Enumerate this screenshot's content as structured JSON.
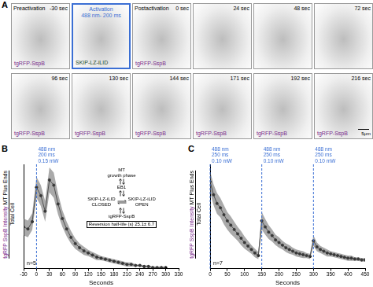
{
  "image_panel": {
    "panel_label": "A",
    "frames": [
      {
        "label": "Preactivation",
        "time": "-30 sec",
        "protein": "tgRFP-SspB"
      },
      {
        "label": "Activation",
        "time": "488 nm- 200 ms",
        "protein": "SKIP-LZ-iLID",
        "color": "#3b6fd4"
      },
      {
        "label": "Postactivation",
        "time": "0 sec",
        "protein": "tgRFP-SspB"
      },
      {
        "time": "24 sec"
      },
      {
        "time": "48 sec"
      },
      {
        "time": "72 sec"
      },
      {
        "time": "96 sec",
        "protein": "tgRFP-SspB"
      },
      {
        "time": "130 sec",
        "protein": "tgRFP-SspB"
      },
      {
        "time": "144 sec",
        "protein": "tgRFP-SspB"
      },
      {
        "time": "171 sec",
        "protein": "tgRFP-SspB"
      },
      {
        "time": "192 sec",
        "protein": "tgRFP-SspB"
      },
      {
        "time": "216 sec",
        "protein": "tgRFP-SspB"
      }
    ],
    "scale_bar": "5μm"
  },
  "chart_data": [
    {
      "type": "line",
      "panel_label": "B",
      "y_label": [
        "tgRFP SspB Intensity",
        "MT Plus Ends",
        "Total Cell"
      ],
      "x_label": "Seconds",
      "x": [
        -30,
        -20,
        -10,
        0,
        10,
        20,
        30,
        40,
        50,
        60,
        70,
        80,
        90,
        100,
        110,
        120,
        130,
        140,
        150,
        160,
        170,
        180,
        190,
        200,
        210,
        220,
        230,
        240,
        250,
        260,
        270,
        280,
        290,
        300
      ],
      "xlim": [
        -30,
        330
      ],
      "xticks": [
        -30,
        0,
        30,
        60,
        90,
        120,
        150,
        180,
        210,
        240,
        270,
        300,
        330
      ],
      "ylim": [
        0,
        1
      ],
      "grid": false,
      "tick_labels": "x",
      "series": [
        {
          "color": "#000000",
          "marker": "circle",
          "line_style": "solid",
          "values": [
            0.4,
            0.38,
            0.45,
            0.78,
            0.7,
            0.55,
            0.85,
            0.8,
            0.62,
            0.48,
            0.38,
            0.3,
            0.24,
            0.2,
            0.17,
            0.15,
            0.13,
            0.11,
            0.1,
            0.09,
            0.08,
            0.07,
            0.06,
            0.05,
            0.04,
            0.04,
            0.03,
            0.03,
            0.02,
            0.02,
            0.01,
            0.01,
            0.01,
            0.01
          ],
          "error": [
            0.08,
            0.08,
            0.08,
            0.1,
            0.1,
            0.1,
            0.12,
            0.12,
            0.1,
            0.08,
            0.07,
            0.06,
            0.05,
            0.04,
            0.04,
            0.03,
            0.03,
            0.03,
            0.02,
            0.02,
            0.02,
            0.02,
            0.02,
            0.02,
            0.02,
            0.02,
            0.01,
            0.01,
            0.01,
            0.01,
            0.01,
            0.01,
            0.01,
            0.01
          ]
        }
      ],
      "annotations": [
        {
          "x": 0,
          "text": [
            "488 nm",
            "200 ms",
            "0.15 mW"
          ],
          "color": "#3b6fd4",
          "line_style": "dashed"
        }
      ],
      "n_label": "n=5",
      "inset": {
        "mt": [
          "MT",
          "growth phase"
        ],
        "eb1": "EB1",
        "closed": [
          "SKIP-LZ-iLID",
          "CLOSED"
        ],
        "open": [
          "SKIP-LZ-iLID",
          "OPEN"
        ],
        "sspb": "tgRFP-SspB",
        "half_life_label": "Reversion half-life (s)",
        "half_life": "25.1± 6.7"
      }
    },
    {
      "type": "line",
      "panel_label": "C",
      "y_label": [
        "tgRFP SspB Intensity",
        "MT Plus Ends",
        "Total Cell"
      ],
      "x_label": "Seconds",
      "x": [
        0,
        10,
        20,
        30,
        40,
        50,
        60,
        70,
        80,
        90,
        100,
        110,
        120,
        130,
        140,
        150,
        160,
        170,
        180,
        190,
        200,
        210,
        220,
        230,
        240,
        250,
        260,
        270,
        280,
        290,
        300,
        310,
        320,
        330,
        340,
        350,
        360,
        370,
        380,
        390,
        400,
        410,
        420,
        430,
        440,
        450
      ],
      "xlim": [
        0,
        450
      ],
      "xticks": [
        0,
        50,
        100,
        150,
        200,
        250,
        300,
        350,
        400,
        450
      ],
      "ylim": [
        0,
        1.2
      ],
      "grid": false,
      "tick_labels": "x",
      "series": [
        {
          "color": "#000000",
          "marker": "circle",
          "line_style": "solid",
          "values": [
            1.0,
            0.85,
            0.75,
            0.7,
            0.62,
            0.55,
            0.5,
            0.45,
            0.4,
            0.35,
            0.3,
            0.26,
            0.22,
            0.18,
            0.15,
            0.55,
            0.48,
            0.42,
            0.38,
            0.33,
            0.3,
            0.27,
            0.24,
            0.22,
            0.2,
            0.18,
            0.17,
            0.16,
            0.15,
            0.14,
            0.32,
            0.25,
            0.22,
            0.2,
            0.18,
            0.17,
            0.16,
            0.15,
            0.14,
            0.13,
            0.12,
            0.12,
            0.11,
            0.11,
            0.1,
            0.1
          ],
          "error": [
            0.12,
            0.12,
            0.12,
            0.11,
            0.11,
            0.1,
            0.1,
            0.09,
            0.08,
            0.08,
            0.07,
            0.06,
            0.05,
            0.05,
            0.04,
            0.1,
            0.09,
            0.08,
            0.07,
            0.06,
            0.06,
            0.05,
            0.05,
            0.05,
            0.04,
            0.04,
            0.04,
            0.04,
            0.03,
            0.03,
            0.06,
            0.05,
            0.04,
            0.04,
            0.04,
            0.03,
            0.03,
            0.03,
            0.03,
            0.03,
            0.03,
            0.03,
            0.02,
            0.02,
            0.02,
            0.02
          ]
        }
      ],
      "annotations": [
        {
          "x": 0,
          "text": [
            "488 nm",
            "250 ms",
            "0.10 mW"
          ],
          "color": "#3b6fd4",
          "line_style": "dashed"
        },
        {
          "x": 150,
          "text": [
            "488 nm",
            "250 ms",
            "0.10 mW"
          ],
          "color": "#3b6fd4",
          "line_style": "dashed"
        },
        {
          "x": 300,
          "text": [
            "488 nm",
            "250 ms",
            "0.10 mW"
          ],
          "color": "#3b6fd4",
          "line_style": "dashed"
        }
      ],
      "n_label": "n=7"
    }
  ]
}
